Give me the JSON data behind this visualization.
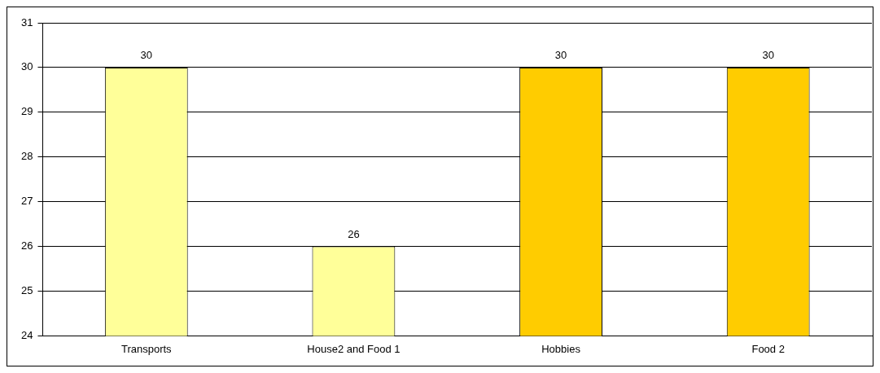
{
  "chart_data": {
    "type": "bar",
    "categories": [
      "Transports",
      "House2 and Food 1",
      "Hobbies",
      "Food 2"
    ],
    "values": [
      30,
      26,
      30,
      30
    ],
    "colors": [
      "#ffff99",
      "#ffff99",
      "#ffcc00",
      "#ffcc00"
    ],
    "ylim": [
      24,
      31
    ],
    "yticks": [
      24,
      25,
      26,
      27,
      28,
      29,
      30,
      31
    ],
    "grid": "y",
    "data_labels": true,
    "legend": false
  }
}
